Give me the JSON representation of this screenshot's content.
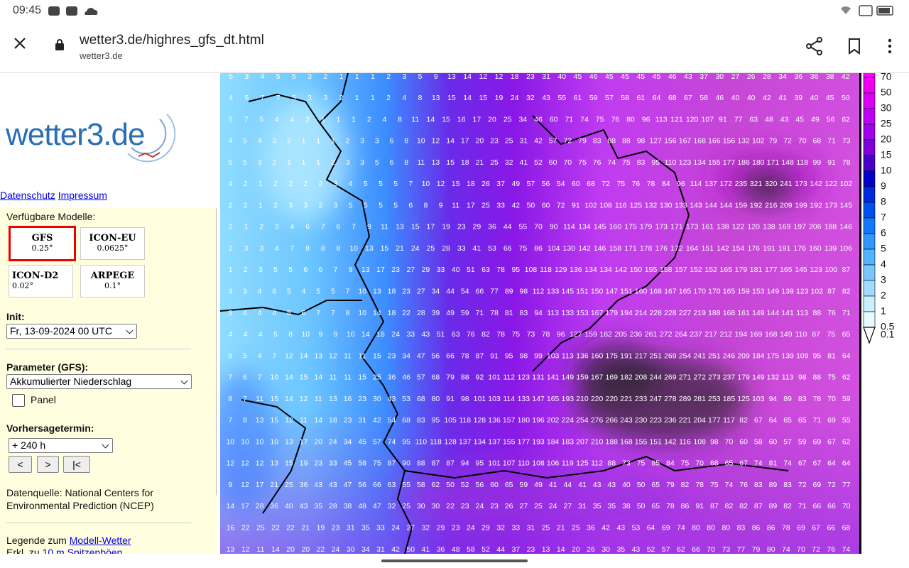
{
  "status": {
    "time": "09:45"
  },
  "browser": {
    "url": "wetter3.de/highres_gfs_dt.html",
    "domain": "wetter3.de"
  },
  "sidebar": {
    "logo": "wetter3.de",
    "links": [
      "Datenschutz",
      "Impressum"
    ],
    "models_label": "Verfügbare Modelle:",
    "models": [
      {
        "name": "GFS",
        "res": "0.25°"
      },
      {
        "name": "ICON-EU",
        "res": "0.0625°"
      },
      {
        "name": "ICON-D2",
        "res": "0.02°"
      },
      {
        "name": "ARPEGE",
        "res": "0.1°"
      }
    ],
    "init_label": "Init:",
    "init_value": "Fr, 13-09-2024 00 UTC",
    "parameter_label": "Parameter (GFS):",
    "parameter_value": "Akkumulierter Niederschlag",
    "panel_label": "Panel",
    "forecast_label": "Vorhersagetermin:",
    "forecast_value": "+ 240 h",
    "nav_buttons": [
      "<",
      ">",
      "|<"
    ],
    "source": "Datenquelle: National Centers for Environmental Prediction (NCEP)",
    "legend_text": "Legende zum",
    "legend_link": "Modell-Wetter",
    "gust_text": "Erkl. zu",
    "gust_link": "10 m Spitzenböen"
  },
  "map": {
    "rows": [
      [
        5,
        3,
        4,
        5,
        5,
        3,
        2,
        1,
        1,
        1,
        2,
        3,
        5,
        9,
        13,
        14,
        12,
        12,
        18,
        23,
        31,
        40,
        45,
        46,
        45,
        45,
        45,
        45,
        46,
        43,
        37,
        30,
        27,
        26,
        28,
        34,
        36,
        36,
        38,
        42
      ],
      [
        4,
        5,
        7,
        7,
        5,
        3,
        3,
        2,
        1,
        1,
        2,
        4,
        8,
        13,
        15,
        14,
        15,
        19,
        24,
        32,
        43,
        55,
        61,
        59,
        57,
        58,
        61,
        64,
        68,
        67,
        58,
        46,
        40,
        40,
        42,
        41,
        39,
        40,
        45,
        50
      ],
      [
        5,
        7,
        5,
        4,
        4,
        2,
        1,
        1,
        1,
        2,
        4,
        8,
        11,
        14,
        15,
        16,
        17,
        20,
        25,
        34,
        46,
        60,
        71,
        74,
        75,
        76,
        80,
        96,
        113,
        121,
        120,
        107,
        91,
        77,
        63,
        48,
        43,
        45,
        49,
        56,
        62
      ],
      [
        4,
        5,
        4,
        3,
        2,
        1,
        1,
        1,
        2,
        3,
        3,
        6,
        8,
        10,
        12,
        14,
        17,
        20,
        23,
        25,
        31,
        42,
        57,
        72,
        79,
        83,
        88,
        88,
        98,
        127,
        156,
        167,
        168,
        166,
        156,
        132,
        102,
        79,
        72,
        70,
        68,
        71,
        73
      ],
      [
        5,
        5,
        3,
        2,
        1,
        1,
        1,
        2,
        3,
        3,
        5,
        6,
        8,
        11,
        13,
        15,
        18,
        21,
        25,
        32,
        41,
        52,
        60,
        70,
        75,
        76,
        74,
        75,
        83,
        95,
        110,
        123,
        134,
        155,
        177,
        186,
        180,
        171,
        148,
        118,
        99,
        91,
        78
      ],
      [
        4,
        2,
        1,
        2,
        2,
        2,
        2,
        3,
        4,
        5,
        5,
        5,
        7,
        10,
        12,
        15,
        18,
        26,
        37,
        49,
        57,
        56,
        54,
        60,
        68,
        72,
        75,
        76,
        78,
        84,
        96,
        114,
        137,
        172,
        235,
        321,
        320,
        241,
        173,
        142,
        122,
        102
      ],
      [
        2,
        2,
        1,
        2,
        3,
        3,
        2,
        3,
        5,
        5,
        5,
        5,
        6,
        8,
        9,
        11,
        17,
        25,
        33,
        42,
        50,
        60,
        72,
        91,
        102,
        108,
        116,
        125,
        132,
        130,
        133,
        143,
        144,
        144,
        159,
        192,
        216,
        209,
        199,
        192,
        173,
        145
      ],
      [
        2,
        1,
        2,
        3,
        4,
        6,
        7,
        6,
        7,
        9,
        11,
        13,
        15,
        17,
        19,
        23,
        29,
        36,
        44,
        55,
        70,
        90,
        114,
        134,
        145,
        160,
        175,
        179,
        173,
        171,
        173,
        161,
        138,
        122,
        120,
        138,
        169,
        197,
        206,
        188,
        146
      ],
      [
        2,
        3,
        3,
        4,
        7,
        8,
        8,
        8,
        10,
        13,
        15,
        21,
        24,
        25,
        28,
        33,
        41,
        53,
        66,
        75,
        86,
        104,
        130,
        142,
        146,
        158,
        171,
        178,
        176,
        172,
        164,
        151,
        142,
        154,
        176,
        191,
        191,
        176,
        160,
        139,
        106
      ],
      [
        1,
        2,
        3,
        5,
        5,
        6,
        6,
        7,
        9,
        13,
        17,
        23,
        27,
        29,
        33,
        40,
        51,
        63,
        78,
        95,
        108,
        118,
        129,
        136,
        134,
        134,
        142,
        150,
        155,
        158,
        157,
        152,
        152,
        165,
        179,
        181,
        177,
        165,
        145,
        123,
        100,
        87
      ],
      [
        3,
        3,
        4,
        6,
        5,
        4,
        5,
        5,
        7,
        10,
        13,
        18,
        23,
        27,
        34,
        44,
        54,
        66,
        77,
        89,
        98,
        112,
        133,
        145,
        151,
        150,
        147,
        151,
        160,
        168,
        167,
        165,
        170,
        170,
        165,
        159,
        153,
        149,
        139,
        123,
        102,
        87,
        82
      ],
      [
        3,
        4,
        4,
        4,
        5,
        6,
        7,
        7,
        8,
        10,
        14,
        18,
        22,
        28,
        39,
        49,
        59,
        71,
        78,
        81,
        83,
        94,
        113,
        133,
        153,
        167,
        179,
        194,
        214,
        228,
        228,
        227,
        219,
        188,
        168,
        161,
        149,
        144,
        141,
        113,
        88,
        76,
        71
      ],
      [
        4,
        4,
        4,
        5,
        8,
        10,
        9,
        9,
        10,
        14,
        18,
        24,
        33,
        43,
        51,
        63,
        76,
        82,
        78,
        75,
        73,
        78,
        96,
        127,
        159,
        182,
        205,
        236,
        261,
        272,
        264,
        237,
        217,
        212,
        194,
        169,
        168,
        149,
        110,
        87,
        75,
        65
      ],
      [
        5,
        5,
        4,
        7,
        12,
        14,
        13,
        12,
        11,
        11,
        15,
        23,
        34,
        47,
        56,
        66,
        78,
        87,
        91,
        95,
        98,
        99,
        103,
        113,
        136,
        160,
        175,
        191,
        217,
        251,
        269,
        254,
        241,
        251,
        246,
        209,
        184,
        175,
        139,
        109,
        95,
        81,
        64
      ],
      [
        7,
        6,
        7,
        10,
        14,
        15,
        14,
        11,
        11,
        15,
        25,
        36,
        46,
        57,
        68,
        79,
        88,
        92,
        101,
        112,
        123,
        131,
        141,
        149,
        159,
        167,
        169,
        182,
        208,
        244,
        269,
        271,
        272,
        273,
        237,
        179,
        149,
        132,
        113,
        98,
        88,
        75,
        62
      ],
      [
        8,
        7,
        11,
        15,
        14,
        12,
        11,
        13,
        16,
        23,
        30,
        43,
        53,
        68,
        80,
        91,
        98,
        101,
        103,
        114,
        133,
        147,
        165,
        193,
        210,
        220,
        220,
        221,
        233,
        247,
        278,
        289,
        281,
        253,
        185,
        125,
        103,
        94,
        89,
        83,
        78,
        70,
        59
      ],
      [
        7,
        8,
        13,
        15,
        12,
        11,
        14,
        18,
        23,
        31,
        42,
        54,
        68,
        83,
        95,
        105,
        118,
        128,
        136,
        157,
        180,
        196,
        202,
        224,
        254,
        276,
        266,
        243,
        230,
        223,
        236,
        221,
        204,
        177,
        117,
        82,
        67,
        64,
        65,
        65,
        71,
        69,
        55
      ],
      [
        10,
        10,
        10,
        10,
        13,
        17,
        20,
        24,
        34,
        45,
        57,
        74,
        95,
        110,
        118,
        128,
        137,
        134,
        137,
        155,
        177,
        193,
        184,
        183,
        207,
        210,
        188,
        168,
        155,
        151,
        142,
        116,
        108,
        98,
        70,
        60,
        58,
        60,
        57,
        59,
        69,
        67,
        62
      ],
      [
        12,
        12,
        12,
        13,
        15,
        19,
        23,
        33,
        45,
        58,
        75,
        87,
        90,
        88,
        87,
        87,
        94,
        95,
        101,
        107,
        110,
        108,
        106,
        119,
        125,
        112,
        88,
        73,
        75,
        85,
        84,
        75,
        70,
        68,
        65,
        67,
        74,
        81,
        74,
        67,
        67,
        64,
        64
      ],
      [
        9,
        12,
        17,
        21,
        25,
        36,
        43,
        43,
        47,
        56,
        66,
        63,
        55,
        58,
        62,
        50,
        52,
        56,
        60,
        65,
        59,
        49,
        41,
        44,
        41,
        43,
        43,
        40,
        50,
        65,
        79,
        82,
        78,
        75,
        74,
        76,
        83,
        89,
        83,
        72,
        69,
        72,
        77
      ],
      [
        14,
        17,
        28,
        36,
        40,
        43,
        35,
        28,
        38,
        48,
        47,
        32,
        25,
        30,
        30,
        22,
        23,
        24,
        23,
        26,
        27,
        25,
        24,
        27,
        31,
        35,
        35,
        38,
        50,
        65,
        78,
        86,
        91,
        87,
        82,
        82,
        87,
        89,
        82,
        71,
        66,
        66,
        70
      ],
      [
        16,
        22,
        25,
        22,
        22,
        21,
        19,
        23,
        31,
        35,
        33,
        24,
        27,
        32,
        29,
        23,
        24,
        29,
        32,
        33,
        31,
        25,
        21,
        25,
        36,
        42,
        43,
        53,
        64,
        69,
        74,
        80,
        80,
        80,
        83,
        86,
        86,
        78,
        69,
        67,
        66,
        68
      ],
      [
        13,
        12,
        11,
        14,
        20,
        20,
        22,
        24,
        30,
        34,
        31,
        42,
        50,
        41,
        36,
        48,
        58,
        52,
        44,
        37,
        23,
        13,
        14,
        20,
        26,
        30,
        35,
        43,
        52,
        57,
        62,
        66,
        70,
        73,
        77,
        79,
        80,
        74,
        70,
        72,
        76,
        74
      ]
    ]
  },
  "legend": [
    {
      "value": 70,
      "color": "#ff00ff"
    },
    {
      "value": 50,
      "color": "#f000f0"
    },
    {
      "value": 30,
      "color": "#dc00f5"
    },
    {
      "value": 25,
      "color": "#be00f5"
    },
    {
      "value": 20,
      "color": "#a000eb"
    },
    {
      "value": 15,
      "color": "#7d00dc"
    },
    {
      "value": 10,
      "color": "#4600c8"
    },
    {
      "value": 9,
      "color": "#0000c8"
    },
    {
      "value": 8,
      "color": "#0028dc"
    },
    {
      "value": 7,
      "color": "#0050f0"
    },
    {
      "value": 6,
      "color": "#1478ff"
    },
    {
      "value": 5,
      "color": "#3296ff"
    },
    {
      "value": 4,
      "color": "#50b4ff"
    },
    {
      "value": 3,
      "color": "#78c8ff"
    },
    {
      "value": 2,
      "color": "#a0dcff"
    },
    {
      "value": 1,
      "color": "#c8f0ff"
    },
    {
      "value": 0.5,
      "color": "#e6faff"
    },
    {
      "value": 0.1,
      "color": "#ffffff"
    }
  ]
}
